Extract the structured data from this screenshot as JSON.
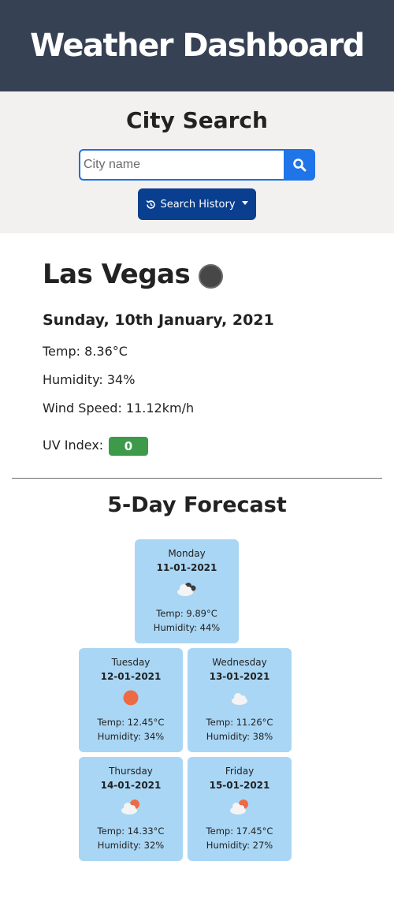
{
  "header": {
    "title": "Weather Dashboard"
  },
  "search": {
    "title": "City Search",
    "placeholder": "City name",
    "value": "",
    "history_label": "Search History"
  },
  "current": {
    "city": "Las Vegas",
    "icon": "dark-circle-icon",
    "date": "Sunday, 10th January, 2021",
    "temp": "Temp: 8.36°C",
    "humidity": "Humidity: 34%",
    "wind": "Wind Speed: 11.12km/h",
    "uv_label": "UV Index:",
    "uv_value": "0",
    "uv_color": "#3d9a4a"
  },
  "forecast": {
    "title": "5-Day Forecast",
    "days": [
      {
        "day": "Monday",
        "date": "11-01-2021",
        "icon": "cloud-night-icon",
        "temp": "Temp: 9.89°C",
        "humidity": "Humidity: 44%"
      },
      {
        "day": "Tuesday",
        "date": "12-01-2021",
        "icon": "sun-icon",
        "temp": "Temp: 12.45°C",
        "humidity": "Humidity: 34%"
      },
      {
        "day": "Wednesday",
        "date": "13-01-2021",
        "icon": "cloud-icon",
        "temp": "Temp: 11.26°C",
        "humidity": "Humidity: 38%"
      },
      {
        "day": "Thursday",
        "date": "14-01-2021",
        "icon": "partly-cloudy-icon",
        "temp": "Temp: 14.33°C",
        "humidity": "Humidity: 32%"
      },
      {
        "day": "Friday",
        "date": "15-01-2021",
        "icon": "partly-cloudy-icon",
        "temp": "Temp: 17.45°C",
        "humidity": "Humidity: 27%"
      }
    ]
  },
  "colors": {
    "header_bg": "#364154",
    "search_bg": "#f2f1f0",
    "primary": "#1f74e8",
    "history_button": "#0a3f8f",
    "card_bg": "#a9d6f5",
    "sun": "#ee6a45"
  }
}
